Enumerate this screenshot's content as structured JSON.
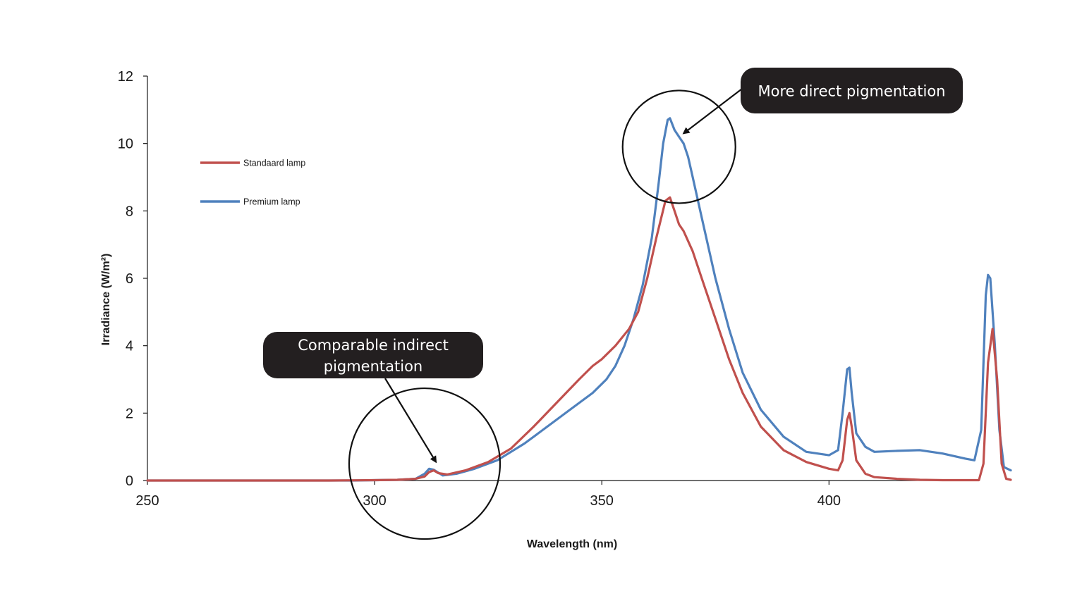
{
  "chart_data": {
    "type": "line",
    "title": "",
    "xlabel": "Wavelength (nm)",
    "ylabel": "Irradiance (W/m²)",
    "xlim": [
      250,
      440
    ],
    "ylim": [
      0,
      12
    ],
    "x_ticks": [
      250,
      300,
      350,
      400
    ],
    "y_ticks": [
      0,
      2,
      4,
      6,
      8,
      10,
      12
    ],
    "grid": false,
    "legend_position": "upper-left",
    "series": [
      {
        "name": "Standaard lamp",
        "color": "#c0504d",
        "points": [
          [
            250,
            0
          ],
          [
            290,
            0
          ],
          [
            300,
            0.01
          ],
          [
            305,
            0.02
          ],
          [
            309,
            0.05
          ],
          [
            311,
            0.12
          ],
          [
            312,
            0.25
          ],
          [
            313,
            0.3
          ],
          [
            314,
            0.22
          ],
          [
            316,
            0.18
          ],
          [
            320,
            0.3
          ],
          [
            325,
            0.55
          ],
          [
            330,
            0.95
          ],
          [
            335,
            1.6
          ],
          [
            340,
            2.3
          ],
          [
            345,
            3.0
          ],
          [
            348,
            3.4
          ],
          [
            350,
            3.6
          ],
          [
            353,
            4.0
          ],
          [
            356,
            4.5
          ],
          [
            358,
            5.0
          ],
          [
            360,
            6.0
          ],
          [
            362,
            7.2
          ],
          [
            364,
            8.3
          ],
          [
            365,
            8.4
          ],
          [
            366,
            8.0
          ],
          [
            367,
            7.6
          ],
          [
            368,
            7.4
          ],
          [
            370,
            6.8
          ],
          [
            372,
            6.0
          ],
          [
            375,
            4.8
          ],
          [
            378,
            3.6
          ],
          [
            381,
            2.6
          ],
          [
            385,
            1.6
          ],
          [
            390,
            0.9
          ],
          [
            395,
            0.55
          ],
          [
            400,
            0.35
          ],
          [
            402,
            0.3
          ],
          [
            403,
            0.6
          ],
          [
            404,
            1.8
          ],
          [
            404.5,
            2.0
          ],
          [
            405,
            1.6
          ],
          [
            406,
            0.6
          ],
          [
            408,
            0.2
          ],
          [
            410,
            0.1
          ],
          [
            415,
            0.05
          ],
          [
            420,
            0.02
          ],
          [
            425,
            0.01
          ],
          [
            433,
            0.01
          ],
          [
            434,
            0.5
          ],
          [
            435,
            3.5
          ],
          [
            436,
            4.5
          ],
          [
            437,
            3.0
          ],
          [
            438,
            0.5
          ],
          [
            439,
            0.05
          ],
          [
            440,
            0.02
          ]
        ]
      },
      {
        "name": "Premium lamp",
        "color": "#4f81bd",
        "points": [
          [
            250,
            0
          ],
          [
            295,
            0
          ],
          [
            300,
            0.01
          ],
          [
            305,
            0.02
          ],
          [
            309,
            0.05
          ],
          [
            311,
            0.2
          ],
          [
            312,
            0.35
          ],
          [
            313,
            0.32
          ],
          [
            315,
            0.15
          ],
          [
            318,
            0.2
          ],
          [
            322,
            0.35
          ],
          [
            327,
            0.6
          ],
          [
            333,
            1.1
          ],
          [
            338,
            1.6
          ],
          [
            343,
            2.1
          ],
          [
            348,
            2.6
          ],
          [
            351,
            3.0
          ],
          [
            353,
            3.4
          ],
          [
            355,
            4.0
          ],
          [
            357,
            4.8
          ],
          [
            359,
            5.8
          ],
          [
            361,
            7.2
          ],
          [
            362.5,
            8.8
          ],
          [
            363.5,
            10.0
          ],
          [
            364.5,
            10.7
          ],
          [
            365,
            10.75
          ],
          [
            366,
            10.4
          ],
          [
            367,
            10.2
          ],
          [
            368,
            10.0
          ],
          [
            369,
            9.6
          ],
          [
            370,
            9.0
          ],
          [
            372,
            7.8
          ],
          [
            375,
            6.0
          ],
          [
            378,
            4.5
          ],
          [
            381,
            3.2
          ],
          [
            385,
            2.1
          ],
          [
            390,
            1.3
          ],
          [
            395,
            0.85
          ],
          [
            400,
            0.75
          ],
          [
            402,
            0.9
          ],
          [
            403,
            2.0
          ],
          [
            404,
            3.3
          ],
          [
            404.5,
            3.35
          ],
          [
            405,
            2.6
          ],
          [
            406,
            1.4
          ],
          [
            408,
            1.0
          ],
          [
            410,
            0.85
          ],
          [
            415,
            0.88
          ],
          [
            420,
            0.9
          ],
          [
            425,
            0.8
          ],
          [
            430,
            0.65
          ],
          [
            432,
            0.6
          ],
          [
            433.5,
            1.5
          ],
          [
            434.5,
            5.5
          ],
          [
            435,
            6.1
          ],
          [
            435.5,
            6.0
          ],
          [
            436.5,
            4.0
          ],
          [
            437.5,
            1.5
          ],
          [
            438.5,
            0.4
          ],
          [
            440,
            0.3
          ]
        ]
      }
    ],
    "legend": [
      {
        "label": "Standaard lamp",
        "color": "#c0504d"
      },
      {
        "label": "Premium lamp",
        "color": "#4f81bd"
      }
    ],
    "annotations": [
      {
        "name": "indirect",
        "lines": [
          "Comparable indirect",
          "pigmentation"
        ],
        "circle_center_data": [
          311,
          0.5
        ],
        "target_data": [
          313.5,
          0.55
        ]
      },
      {
        "name": "direct",
        "lines": [
          "More direct pigmentation"
        ],
        "circle_center_data": [
          367,
          9.9
        ],
        "target_data": [
          368,
          10.3
        ]
      }
    ]
  }
}
